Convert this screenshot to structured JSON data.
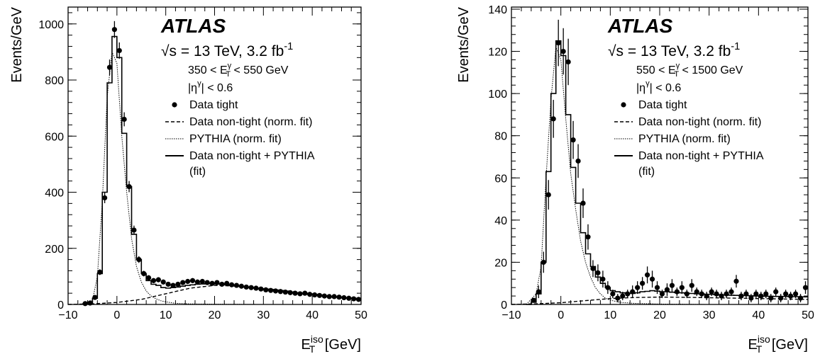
{
  "chart_data": [
    {
      "type": "line",
      "experiment": "ATLAS",
      "sqrt_s_label": "s",
      "energy_rest": " = 13 TeV, 3.2 fb",
      "lumi_exp": "-1",
      "selection": {
        "et_lo": "350 <",
        "et_var": "E",
        "et_sup": "γ",
        "et_sub": "T",
        "et_hi": "< 550 GeV",
        "eta_text": "|η",
        "eta_sup": "γ",
        "eta_rest": "| < 0.6"
      },
      "xlabel": {
        "main": "E",
        "sup": "iso",
        "sub": "T",
        "unit": " [GeV]"
      },
      "ylabel": "Events/GeV",
      "xlim": [
        -10,
        50
      ],
      "ylim": [
        0,
        1060
      ],
      "x_ticks": [
        -10,
        0,
        10,
        20,
        30,
        40,
        50
      ],
      "x_tick_labels": [
        "−10",
        "0",
        "10",
        "20",
        "30",
        "40",
        "50"
      ],
      "y_ticks": [
        0,
        200,
        400,
        600,
        800,
        1000
      ],
      "y_tick_labels": [
        "0",
        "200",
        "400",
        "600",
        "800",
        "1000"
      ],
      "legend": [
        {
          "style": "marker",
          "label": "Data tight"
        },
        {
          "style": "dashed",
          "label": "Data non-tight (norm. fit)"
        },
        {
          "style": "dotted",
          "label": "PYTHIA (norm. fit)"
        },
        {
          "style": "solid",
          "label": "Data non-tight + PYTHIA",
          "label2": "(fit)"
        }
      ],
      "bin_edges": [
        -7,
        -6,
        -5,
        -4,
        -3,
        -2,
        -1,
        0,
        1,
        2,
        3,
        4,
        5,
        6,
        7,
        8,
        9,
        10,
        11,
        12,
        13,
        14,
        15,
        16,
        17,
        18,
        19,
        20,
        21,
        22,
        23,
        24,
        25,
        26,
        27,
        28,
        29,
        30,
        31,
        32,
        33,
        34,
        35,
        36,
        37,
        38,
        39,
        40,
        41,
        42,
        43,
        44,
        45,
        46,
        47,
        48,
        49,
        50
      ],
      "fit_total": [
        2,
        5,
        22,
        110,
        400,
        790,
        955,
        880,
        610,
        420,
        250,
        160,
        110,
        85,
        72,
        68,
        60,
        58,
        60,
        62,
        65,
        68,
        70,
        72,
        73,
        74,
        74,
        73,
        72,
        70,
        68,
        66,
        64,
        62,
        60,
        58,
        56,
        54,
        52,
        50,
        48,
        46,
        44,
        42,
        40,
        38,
        36,
        34,
        32,
        30,
        28,
        27,
        26,
        24,
        23,
        22,
        21
      ],
      "data_points": [
        {
          "x": -6.5,
          "y": 3,
          "err": 2
        },
        {
          "x": -5.5,
          "y": 5,
          "err": 3
        },
        {
          "x": -4.5,
          "y": 25,
          "err": 5
        },
        {
          "x": -3.5,
          "y": 115,
          "err": 10
        },
        {
          "x": -2.5,
          "y": 380,
          "err": 19
        },
        {
          "x": -1.5,
          "y": 845,
          "err": 28
        },
        {
          "x": -0.5,
          "y": 980,
          "err": 30
        },
        {
          "x": 0.5,
          "y": 905,
          "err": 29
        },
        {
          "x": 1.5,
          "y": 660,
          "err": 25
        },
        {
          "x": 2.5,
          "y": 420,
          "err": 20
        },
        {
          "x": 3.5,
          "y": 265,
          "err": 16
        },
        {
          "x": 4.5,
          "y": 160,
          "err": 12
        },
        {
          "x": 5.5,
          "y": 110,
          "err": 10
        },
        {
          "x": 6.5,
          "y": 95,
          "err": 9
        },
        {
          "x": 7.5,
          "y": 85,
          "err": 9
        },
        {
          "x": 8.5,
          "y": 88,
          "err": 9
        },
        {
          "x": 9.5,
          "y": 80,
          "err": 9
        },
        {
          "x": 10.5,
          "y": 72,
          "err": 8
        },
        {
          "x": 11.5,
          "y": 68,
          "err": 8
        },
        {
          "x": 12.5,
          "y": 72,
          "err": 8
        },
        {
          "x": 13.5,
          "y": 78,
          "err": 8
        },
        {
          "x": 14.5,
          "y": 82,
          "err": 9
        },
        {
          "x": 15.5,
          "y": 85,
          "err": 9
        },
        {
          "x": 16.5,
          "y": 80,
          "err": 9
        },
        {
          "x": 17.5,
          "y": 82,
          "err": 9
        },
        {
          "x": 18.5,
          "y": 78,
          "err": 8
        },
        {
          "x": 19.5,
          "y": 75,
          "err": 8
        },
        {
          "x": 20.5,
          "y": 78,
          "err": 8
        },
        {
          "x": 21.5,
          "y": 72,
          "err": 8
        },
        {
          "x": 22.5,
          "y": 75,
          "err": 8
        },
        {
          "x": 23.5,
          "y": 70,
          "err": 8
        },
        {
          "x": 24.5,
          "y": 68,
          "err": 8
        },
        {
          "x": 25.5,
          "y": 65,
          "err": 8
        },
        {
          "x": 26.5,
          "y": 62,
          "err": 8
        },
        {
          "x": 27.5,
          "y": 60,
          "err": 7
        },
        {
          "x": 28.5,
          "y": 58,
          "err": 7
        },
        {
          "x": 29.5,
          "y": 55,
          "err": 7
        },
        {
          "x": 30.5,
          "y": 52,
          "err": 7
        },
        {
          "x": 31.5,
          "y": 50,
          "err": 7
        },
        {
          "x": 32.5,
          "y": 48,
          "err": 7
        },
        {
          "x": 33.5,
          "y": 46,
          "err": 7
        },
        {
          "x": 34.5,
          "y": 44,
          "err": 6
        },
        {
          "x": 35.5,
          "y": 42,
          "err": 6
        },
        {
          "x": 36.5,
          "y": 40,
          "err": 6
        },
        {
          "x": 37.5,
          "y": 38,
          "err": 6
        },
        {
          "x": 38.5,
          "y": 40,
          "err": 6
        },
        {
          "x": 39.5,
          "y": 36,
          "err": 6
        },
        {
          "x": 40.5,
          "y": 34,
          "err": 6
        },
        {
          "x": 41.5,
          "y": 32,
          "err": 6
        },
        {
          "x": 42.5,
          "y": 30,
          "err": 5
        },
        {
          "x": 43.5,
          "y": 28,
          "err": 5
        },
        {
          "x": 44.5,
          "y": 28,
          "err": 5
        },
        {
          "x": 45.5,
          "y": 26,
          "err": 5
        },
        {
          "x": 46.5,
          "y": 24,
          "err": 5
        },
        {
          "x": 47.5,
          "y": 22,
          "err": 5
        },
        {
          "x": 48.5,
          "y": 20,
          "err": 5
        },
        {
          "x": 49.5,
          "y": 18,
          "err": 4
        }
      ],
      "nontight_curve": [
        [
          -10,
          0
        ],
        [
          -5,
          2
        ],
        [
          0,
          7
        ],
        [
          5,
          18
        ],
        [
          10,
          38
        ],
        [
          15,
          58
        ],
        [
          20,
          68
        ],
        [
          25,
          65
        ],
        [
          30,
          57
        ],
        [
          35,
          48
        ],
        [
          40,
          38
        ],
        [
          45,
          28
        ],
        [
          50,
          20
        ]
      ],
      "pythia_curve": [
        [
          -7,
          0
        ],
        [
          -5,
          15
        ],
        [
          -4,
          100
        ],
        [
          -3,
          365
        ],
        [
          -2,
          740
        ],
        [
          -1,
          900
        ],
        [
          0,
          860
        ],
        [
          1,
          600
        ],
        [
          2,
          400
        ],
        [
          3,
          235
        ],
        [
          4,
          135
        ],
        [
          5,
          80
        ],
        [
          6,
          48
        ],
        [
          7,
          30
        ],
        [
          8,
          20
        ],
        [
          9,
          13
        ],
        [
          10,
          9
        ],
        [
          12,
          4
        ],
        [
          15,
          2
        ],
        [
          20,
          1
        ],
        [
          30,
          0
        ],
        [
          50,
          0
        ]
      ]
    },
    {
      "type": "line",
      "experiment": "ATLAS",
      "sqrt_s_label": "s",
      "energy_rest": " = 13 TeV, 3.2 fb",
      "lumi_exp": "-1",
      "selection": {
        "et_lo": "550 <",
        "et_var": "E",
        "et_sup": "γ",
        "et_sub": "T",
        "et_hi": "< 1500 GeV",
        "eta_text": "|η",
        "eta_sup": "γ",
        "eta_rest": "| < 0.6"
      },
      "xlabel": {
        "main": "E",
        "sup": "iso",
        "sub": "T",
        "unit": " [GeV]"
      },
      "ylabel": "Events/GeV",
      "xlim": [
        -10,
        50
      ],
      "ylim": [
        0,
        141
      ],
      "x_ticks": [
        -10,
        0,
        10,
        20,
        30,
        40,
        50
      ],
      "x_tick_labels": [
        "−10",
        "0",
        "10",
        "20",
        "30",
        "40",
        "50"
      ],
      "y_ticks": [
        0,
        20,
        40,
        60,
        80,
        100,
        120,
        140
      ],
      "y_tick_labels": [
        "0",
        "20",
        "40",
        "60",
        "80",
        "100",
        "120",
        "140"
      ],
      "legend": [
        {
          "style": "marker",
          "label": "Data tight"
        },
        {
          "style": "dashed",
          "label": "Data non-tight (norm. fit)"
        },
        {
          "style": "dotted",
          "label": "PYTHIA (norm. fit)"
        },
        {
          "style": "solid",
          "label": "Data non-tight + PYTHIA",
          "label2": "(fit)"
        }
      ],
      "bin_edges": [
        -7,
        -6,
        -5,
        -4,
        -3,
        -2,
        -1,
        0,
        1,
        2,
        3,
        4,
        5,
        6,
        7,
        8,
        9,
        10,
        11,
        12,
        13,
        14,
        15,
        16,
        17,
        18,
        19,
        20,
        21,
        22,
        23,
        24,
        25,
        26,
        27,
        28,
        29,
        30,
        31,
        32,
        33,
        34,
        35,
        36,
        37,
        38,
        39,
        40,
        41,
        42,
        43,
        44,
        45,
        46,
        47,
        48,
        49,
        50
      ],
      "fit_total": [
        0,
        1,
        5,
        20,
        63,
        100,
        125,
        118,
        90,
        65,
        48,
        34,
        24,
        18,
        13,
        10,
        8,
        6.5,
        6,
        5.5,
        5.3,
        5.2,
        5.5,
        6,
        6.2,
        6.5,
        6.3,
        6,
        6,
        5.8,
        5.6,
        5.5,
        5.3,
        5.2,
        5,
        5,
        4.8,
        4.8,
        4.6,
        4.5,
        4.5,
        4.4,
        4.3,
        4.2,
        4.2,
        4.1,
        4,
        4,
        3.9,
        3.9,
        3.8,
        3.8,
        3.8,
        3.7,
        3.7,
        3.6,
        3.6
      ],
      "data_points": [
        {
          "x": -5.5,
          "y": 2,
          "err": 1
        },
        {
          "x": -4.5,
          "y": 6,
          "err": 3
        },
        {
          "x": -3.5,
          "y": 20,
          "err": 5
        },
        {
          "x": -2.5,
          "y": 52,
          "err": 7
        },
        {
          "x": -1.5,
          "y": 88,
          "err": 9
        },
        {
          "x": -0.5,
          "y": 124,
          "err": 11
        },
        {
          "x": 0.5,
          "y": 120,
          "err": 11
        },
        {
          "x": 1.5,
          "y": 115,
          "err": 11
        },
        {
          "x": 2.5,
          "y": 78,
          "err": 9
        },
        {
          "x": 3.5,
          "y": 68,
          "err": 8
        },
        {
          "x": 4.5,
          "y": 48,
          "err": 7
        },
        {
          "x": 5.5,
          "y": 32,
          "err": 6
        },
        {
          "x": 6.5,
          "y": 17,
          "err": 4
        },
        {
          "x": 7.5,
          "y": 15,
          "err": 4
        },
        {
          "x": 8.5,
          "y": 12,
          "err": 4
        },
        {
          "x": 9.5,
          "y": 8,
          "err": 3
        },
        {
          "x": 10.5,
          "y": 5,
          "err": 2
        },
        {
          "x": 11.5,
          "y": 3,
          "err": 2
        },
        {
          "x": 12.5,
          "y": 4,
          "err": 2
        },
        {
          "x": 13.5,
          "y": 5,
          "err": 2
        },
        {
          "x": 14.5,
          "y": 6,
          "err": 3
        },
        {
          "x": 15.5,
          "y": 8,
          "err": 3
        },
        {
          "x": 16.5,
          "y": 10,
          "err": 3
        },
        {
          "x": 17.5,
          "y": 14,
          "err": 4
        },
        {
          "x": 18.5,
          "y": 12,
          "err": 4
        },
        {
          "x": 19.5,
          "y": 8,
          "err": 3
        },
        {
          "x": 20.5,
          "y": 5,
          "err": 2
        },
        {
          "x": 21.5,
          "y": 7,
          "err": 3
        },
        {
          "x": 22.5,
          "y": 9,
          "err": 3
        },
        {
          "x": 23.5,
          "y": 6,
          "err": 2
        },
        {
          "x": 24.5,
          "y": 8,
          "err": 3
        },
        {
          "x": 25.5,
          "y": 5,
          "err": 2
        },
        {
          "x": 26.5,
          "y": 9,
          "err": 3
        },
        {
          "x": 27.5,
          "y": 6,
          "err": 2
        },
        {
          "x": 28.5,
          "y": 5,
          "err": 2
        },
        {
          "x": 29.5,
          "y": 4,
          "err": 2
        },
        {
          "x": 30.5,
          "y": 6,
          "err": 2
        },
        {
          "x": 31.5,
          "y": 5,
          "err": 2
        },
        {
          "x": 32.5,
          "y": 4,
          "err": 2
        },
        {
          "x": 33.5,
          "y": 5,
          "err": 2
        },
        {
          "x": 34.5,
          "y": 6,
          "err": 2
        },
        {
          "x": 35.5,
          "y": 11,
          "err": 3
        },
        {
          "x": 36.5,
          "y": 4,
          "err": 2
        },
        {
          "x": 37.5,
          "y": 5,
          "err": 2
        },
        {
          "x": 38.5,
          "y": 3,
          "err": 2
        },
        {
          "x": 39.5,
          "y": 5,
          "err": 2
        },
        {
          "x": 40.5,
          "y": 4,
          "err": 2
        },
        {
          "x": 41.5,
          "y": 5,
          "err": 2
        },
        {
          "x": 42.5,
          "y": 3,
          "err": 2
        },
        {
          "x": 43.5,
          "y": 6,
          "err": 2
        },
        {
          "x": 44.5,
          "y": 3,
          "err": 2
        },
        {
          "x": 45.5,
          "y": 5,
          "err": 2
        },
        {
          "x": 46.5,
          "y": 4,
          "err": 2
        },
        {
          "x": 47.5,
          "y": 5,
          "err": 2
        },
        {
          "x": 48.5,
          "y": 3,
          "err": 2
        },
        {
          "x": 49.5,
          "y": 8,
          "err": 3
        }
      ],
      "nontight_curve": [
        [
          -10,
          0
        ],
        [
          -5,
          0.3
        ],
        [
          0,
          0.8
        ],
        [
          5,
          1.8
        ],
        [
          10,
          2.8
        ],
        [
          15,
          3.3
        ],
        [
          20,
          3.5
        ],
        [
          25,
          3.4
        ],
        [
          30,
          3.2
        ],
        [
          35,
          3
        ],
        [
          40,
          2.8
        ],
        [
          45,
          2.6
        ],
        [
          50,
          2.4
        ]
      ],
      "pythia_curve": [
        [
          -7,
          0
        ],
        [
          -5,
          5
        ],
        [
          -4,
          18
        ],
        [
          -3,
          60
        ],
        [
          -2,
          97
        ],
        [
          -1,
          122
        ],
        [
          0,
          116
        ],
        [
          1,
          88
        ],
        [
          2,
          62
        ],
        [
          3,
          45
        ],
        [
          4,
          30
        ],
        [
          5,
          20
        ],
        [
          6,
          13
        ],
        [
          7,
          8
        ],
        [
          8,
          5
        ],
        [
          9,
          3
        ],
        [
          10,
          2
        ],
        [
          12,
          1
        ],
        [
          15,
          0.5
        ],
        [
          20,
          0.2
        ],
        [
          30,
          0
        ],
        [
          50,
          0
        ]
      ]
    }
  ]
}
